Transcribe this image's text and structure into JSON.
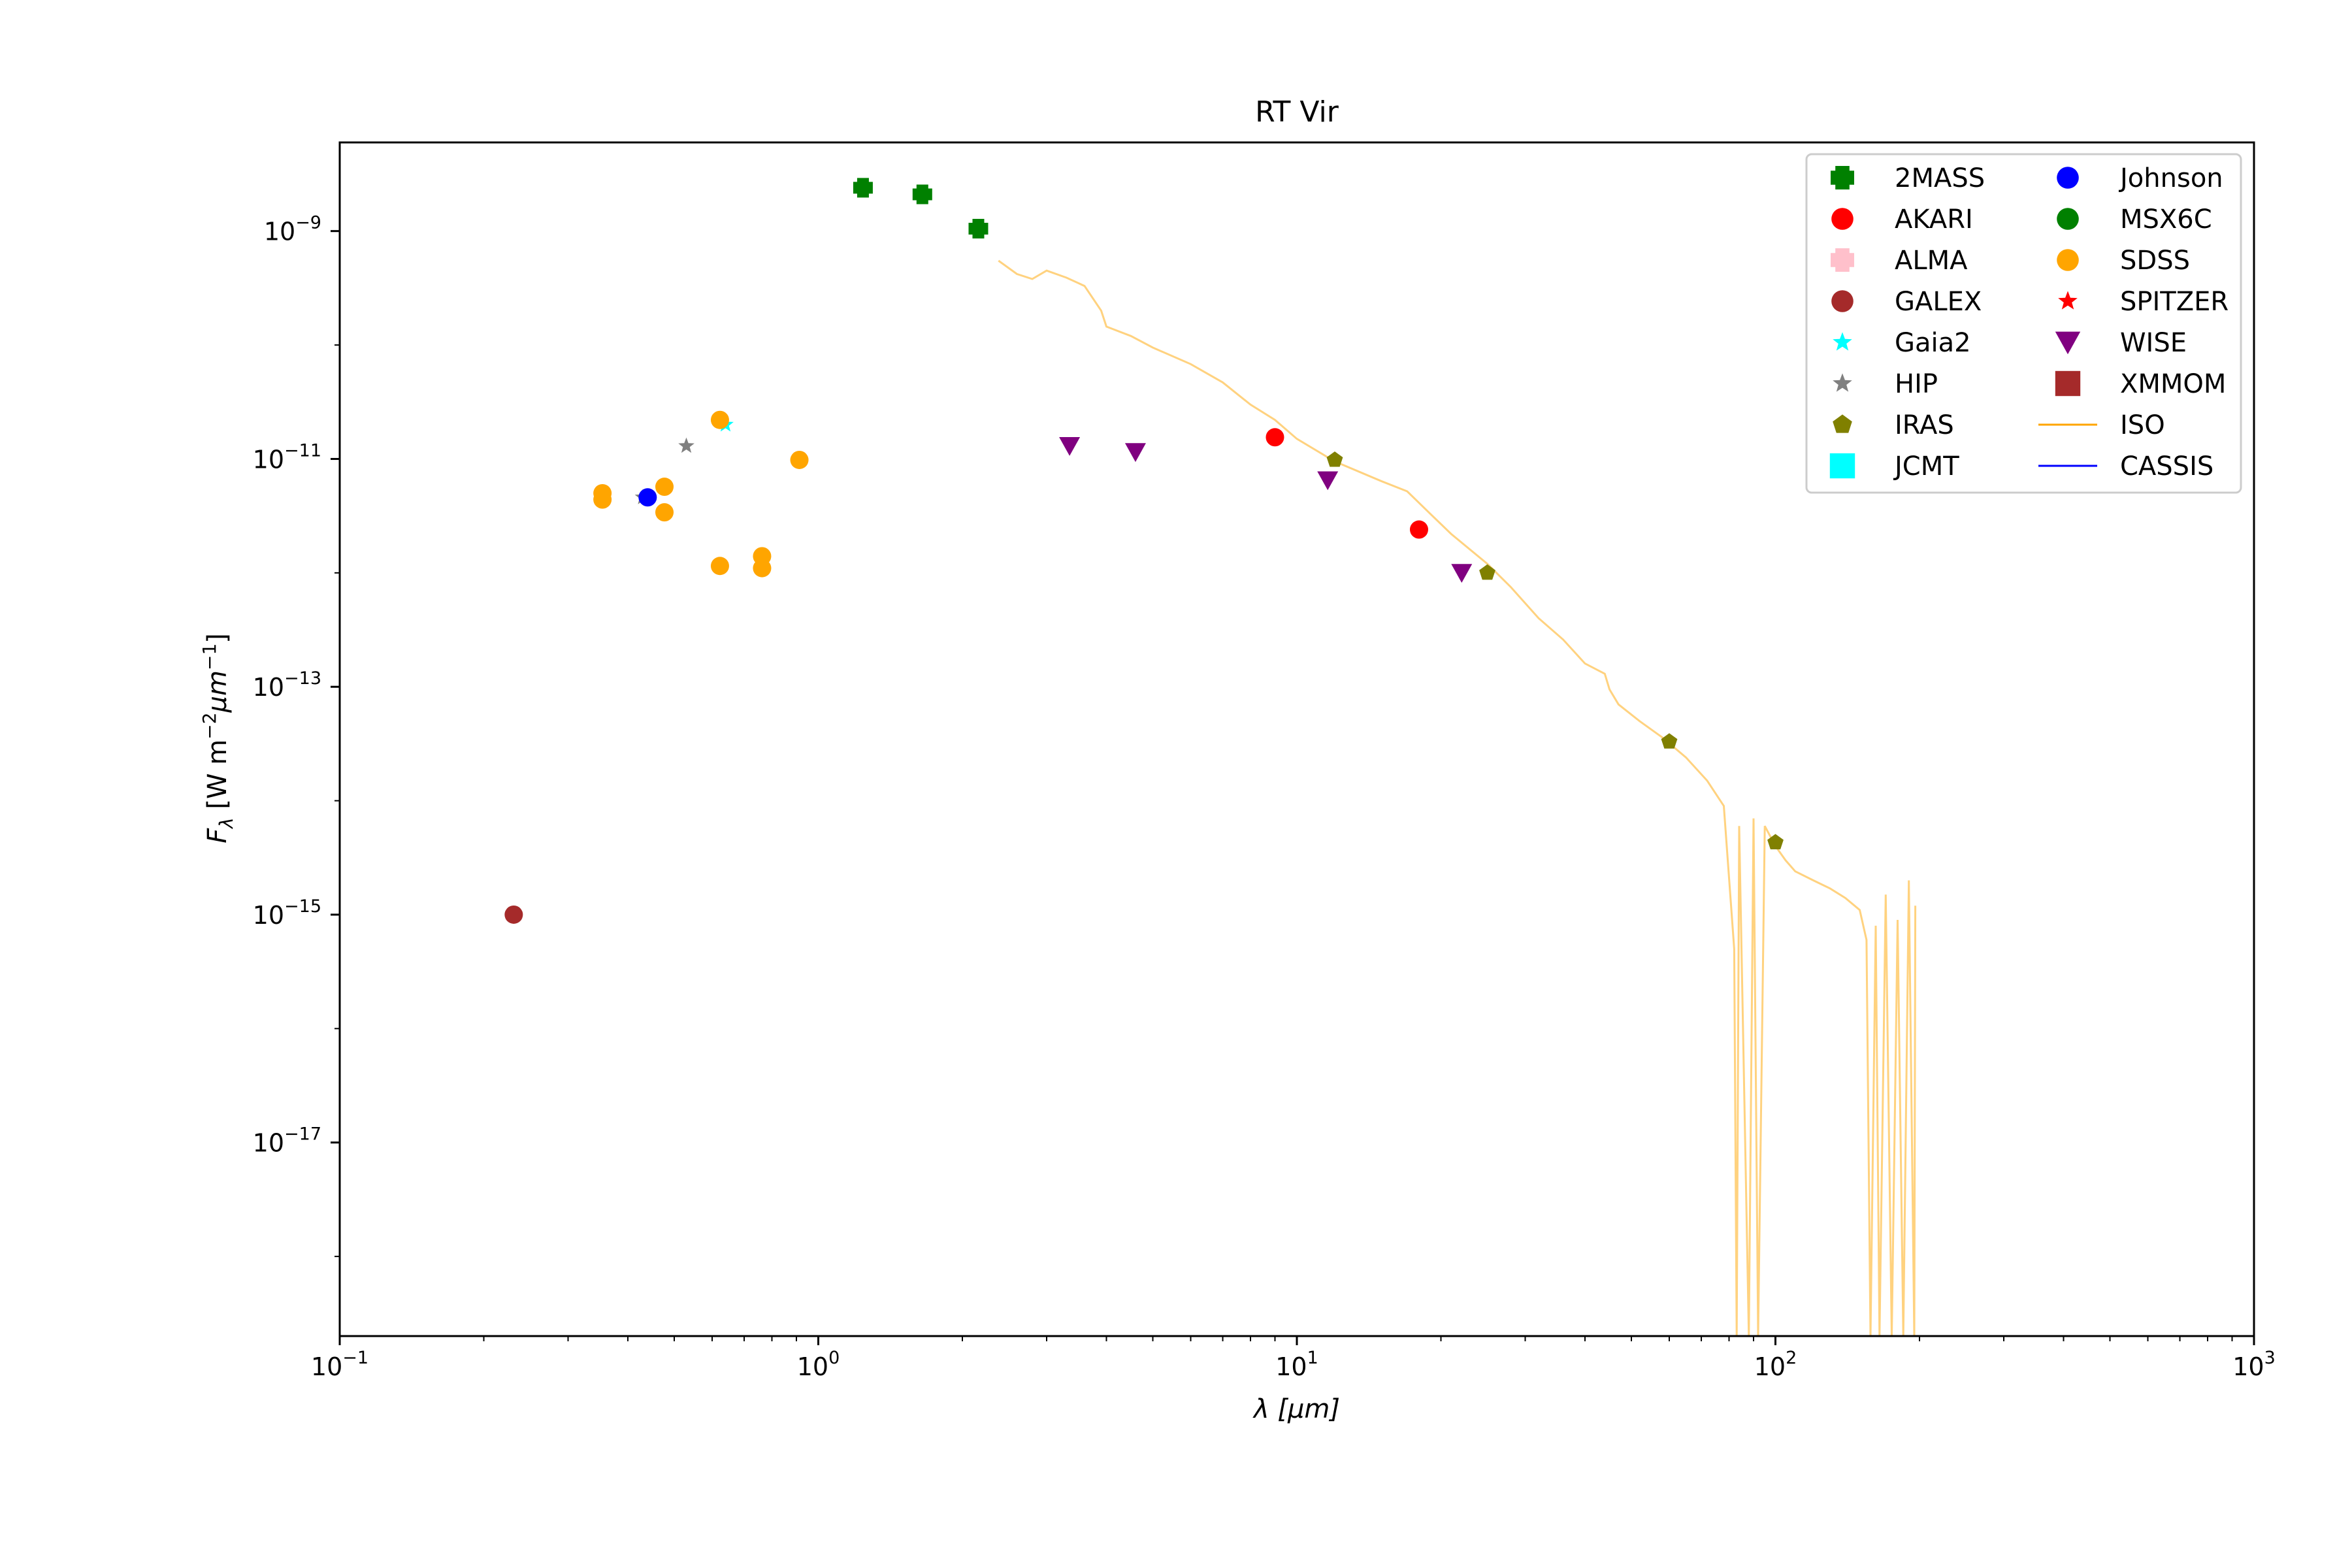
{
  "chart_data": {
    "type": "scatter",
    "title": "RT Vir",
    "xlabel": "λ [μm]",
    "ylabel": "Fλ [W m⁻² μm⁻¹]",
    "xscale": "log",
    "yscale": "log",
    "xlim": [
      0.1,
      1000
    ],
    "ylim": [
      2e-19,
      6e-09
    ],
    "x_ticks": [
      {
        "value": 0.1,
        "base": "10",
        "exp": "−1"
      },
      {
        "value": 1,
        "base": "10",
        "exp": "0"
      },
      {
        "value": 10,
        "base": "10",
        "exp": "1"
      },
      {
        "value": 100,
        "base": "10",
        "exp": "2"
      },
      {
        "value": 1000,
        "base": "10",
        "exp": "3"
      }
    ],
    "y_ticks": [
      {
        "value": 1e-09,
        "base": "10",
        "exp": "−9"
      },
      {
        "value": 1e-11,
        "base": "10",
        "exp": "−11"
      },
      {
        "value": 1e-13,
        "base": "10",
        "exp": "−13"
      },
      {
        "value": 1e-15,
        "base": "10",
        "exp": "−15"
      },
      {
        "value": 1e-17,
        "base": "10",
        "exp": "−17"
      }
    ],
    "grid": false,
    "legend_position": "top-right",
    "legend_columns": 2,
    "legend": [
      {
        "name": "2MASS",
        "marker": "plus",
        "color": "#008000"
      },
      {
        "name": "AKARI",
        "marker": "circle",
        "color": "#ff0000"
      },
      {
        "name": "ALMA",
        "marker": "plus",
        "color": "#ffc0cb"
      },
      {
        "name": "GALEX",
        "marker": "circle",
        "color": "#a52a2a"
      },
      {
        "name": "Gaia2",
        "marker": "star",
        "color": "#00ffff"
      },
      {
        "name": "HIP",
        "marker": "star",
        "color": "#808080"
      },
      {
        "name": "IRAS",
        "marker": "pentagon",
        "color": "#808000"
      },
      {
        "name": "JCMT",
        "marker": "square",
        "color": "#00ffff"
      },
      {
        "name": "Johnson",
        "marker": "circle",
        "color": "#0000ff"
      },
      {
        "name": "MSX6C",
        "marker": "circle",
        "color": "#008000"
      },
      {
        "name": "SDSS",
        "marker": "circle",
        "color": "#ffa500"
      },
      {
        "name": "SPITZER",
        "marker": "star",
        "color": "#ff0000"
      },
      {
        "name": "WISE",
        "marker": "triangle-down",
        "color": "#800080"
      },
      {
        "name": "XMMOM",
        "marker": "square",
        "color": "#a52a2a"
      },
      {
        "name": "ISO",
        "marker": "line",
        "color": "#ffa500"
      },
      {
        "name": "CASSIS",
        "marker": "line",
        "color": "#0000ff"
      }
    ],
    "series": [
      {
        "name": "2MASS",
        "marker": "plus",
        "color": "#008000",
        "points": [
          [
            1.24,
            2.4e-09
          ],
          [
            1.65,
            2.1e-09
          ],
          [
            2.16,
            1.05e-09
          ]
        ]
      },
      {
        "name": "AKARI",
        "marker": "circle",
        "color": "#ff0000",
        "points": [
          [
            9.0,
            1.55e-11
          ],
          [
            18.0,
            2.4e-12
          ]
        ]
      },
      {
        "name": "GALEX",
        "marker": "circle",
        "color": "#a52a2a",
        "points": [
          [
            0.231,
            1e-15
          ]
        ]
      },
      {
        "name": "Gaia2",
        "marker": "star",
        "color": "#00ffff",
        "points": [
          [
            0.64,
            2e-11
          ]
        ]
      },
      {
        "name": "HIP",
        "marker": "star",
        "color": "#808080",
        "points": [
          [
            0.53,
            1.3e-11
          ],
          [
            0.43,
            4.6e-12
          ]
        ]
      },
      {
        "name": "IRAS",
        "marker": "pentagon",
        "color": "#808000",
        "points": [
          [
            12,
            9.8e-12
          ],
          [
            25,
            1e-12
          ],
          [
            60,
            3.3e-14
          ],
          [
            100,
            4.3e-15
          ]
        ]
      },
      {
        "name": "Johnson",
        "marker": "circle",
        "color": "#0000ff",
        "points": [
          [
            0.44,
            4.6e-12
          ]
        ]
      },
      {
        "name": "SDSS",
        "marker": "circle",
        "color": "#ffa500",
        "points": [
          [
            0.354,
            5e-12
          ],
          [
            0.354,
            4.4e-12
          ],
          [
            0.477,
            5.7e-12
          ],
          [
            0.477,
            3.4e-12
          ],
          [
            0.623,
            2.2e-11
          ],
          [
            0.623,
            1.15e-12
          ],
          [
            0.763,
            1.4e-12
          ],
          [
            0.763,
            1.1e-12
          ],
          [
            0.913,
            9.8e-12
          ]
        ]
      },
      {
        "name": "WISE",
        "marker": "triangle-down",
        "color": "#800080",
        "points": [
          [
            3.35,
            1.3e-11
          ],
          [
            4.6,
            1.15e-11
          ],
          [
            11.6,
            6.5e-12
          ],
          [
            22.1,
            1e-12
          ]
        ]
      }
    ],
    "spectra": [
      {
        "name": "ISO",
        "color": "#ffa500",
        "opacity": 0.5,
        "points": [
          [
            2.38,
            5.5e-10
          ],
          [
            2.6,
            4.2e-10
          ],
          [
            2.8,
            3.8e-10
          ],
          [
            3.0,
            4.5e-10
          ],
          [
            3.3,
            3.9e-10
          ],
          [
            3.6,
            3.3e-10
          ],
          [
            3.9,
            2e-10
          ],
          [
            4.0,
            1.45e-10
          ],
          [
            4.5,
            1.2e-10
          ],
          [
            5.0,
            9.5e-11
          ],
          [
            6.0,
            6.8e-11
          ],
          [
            7.0,
            4.7e-11
          ],
          [
            8.0,
            3e-11
          ],
          [
            9.0,
            2.2e-11
          ],
          [
            10,
            1.5e-11
          ],
          [
            12,
            9.5e-12
          ],
          [
            15,
            6.4e-12
          ],
          [
            17,
            5.2e-12
          ],
          [
            19,
            3.3e-12
          ],
          [
            21,
            2.2e-12
          ],
          [
            25,
            1.2e-12
          ],
          [
            28,
            7.5e-13
          ],
          [
            32,
            4e-13
          ],
          [
            36,
            2.6e-13
          ],
          [
            40,
            1.6e-13
          ],
          [
            44,
            1.3e-13
          ],
          [
            45,
            9.5e-14
          ],
          [
            47,
            7e-14
          ],
          [
            52,
            5e-14
          ],
          [
            58,
            3.6e-14
          ],
          [
            65,
            2.4e-14
          ],
          [
            72,
            1.5e-14
          ],
          [
            78,
            9e-15
          ],
          [
            82,
            5e-16
          ],
          [
            83,
            2e-19
          ],
          [
            84,
            6e-15
          ],
          [
            88,
            2e-19
          ],
          [
            90,
            7e-15
          ],
          [
            92,
            2e-19
          ],
          [
            95,
            6e-15
          ],
          [
            100,
            4e-15
          ],
          [
            105,
            3e-15
          ],
          [
            110,
            2.4e-15
          ],
          [
            120,
            2e-15
          ],
          [
            130,
            1.7e-15
          ],
          [
            140,
            1.4e-15
          ],
          [
            150,
            1.1e-15
          ],
          [
            155,
            6e-16
          ],
          [
            158,
            2e-19
          ],
          [
            162,
            8e-16
          ],
          [
            165,
            2e-19
          ],
          [
            170,
            1.5e-15
          ],
          [
            175,
            2e-19
          ],
          [
            180,
            9e-16
          ],
          [
            185,
            2e-19
          ],
          [
            190,
            2e-15
          ],
          [
            195,
            2e-19
          ],
          [
            196,
            1.2e-15
          ]
        ]
      }
    ]
  }
}
